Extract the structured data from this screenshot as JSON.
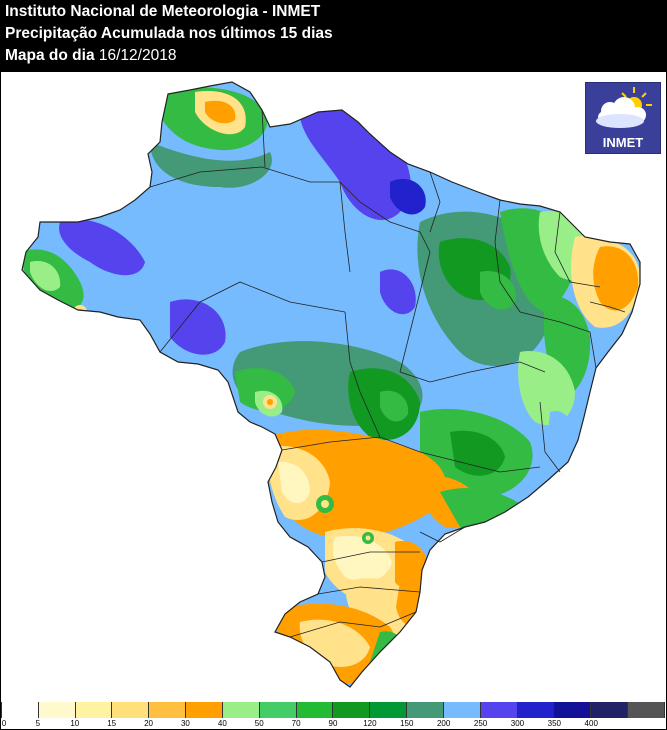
{
  "header": {
    "line1": "Instituto Nacional de Meteorologia - INMET",
    "line2": "Precipitação Acumulada nos últimos 15 dias",
    "line3_prefix": "Mapa do dia ",
    "line3_date": "16/12/2018"
  },
  "logo": {
    "text": "INMET",
    "icon": "sun-cloud-icon"
  },
  "legend": {
    "ticks": [
      "0",
      "5",
      "10",
      "15",
      "20",
      "30",
      "40",
      "50",
      "70",
      "90",
      "120",
      "150",
      "200",
      "250",
      "300",
      "350",
      "400"
    ],
    "colors": [
      "#ffffff",
      "#fff9cc",
      "#fff2a0",
      "#ffe07a",
      "#ffc040",
      "#ff9f00",
      "#99ee88",
      "#44cc66",
      "#22bb33",
      "#119922",
      "#009933",
      "#449977",
      "#77bbff",
      "#5544ee",
      "#2222cc",
      "#111199",
      "#222266",
      "#555555"
    ]
  },
  "map": {
    "title": "",
    "palette": {
      "white": "#ffffff",
      "cream": "#fff6c0",
      "yellow": "#ffe28a",
      "orange": "#ff9f00",
      "lightgreen": "#99ee88",
      "green": "#33bb44",
      "darkgreen": "#119922",
      "teal": "#449977",
      "lightblue": "#77bbff",
      "purple": "#5544ee",
      "darkblue": "#2222cc"
    }
  }
}
